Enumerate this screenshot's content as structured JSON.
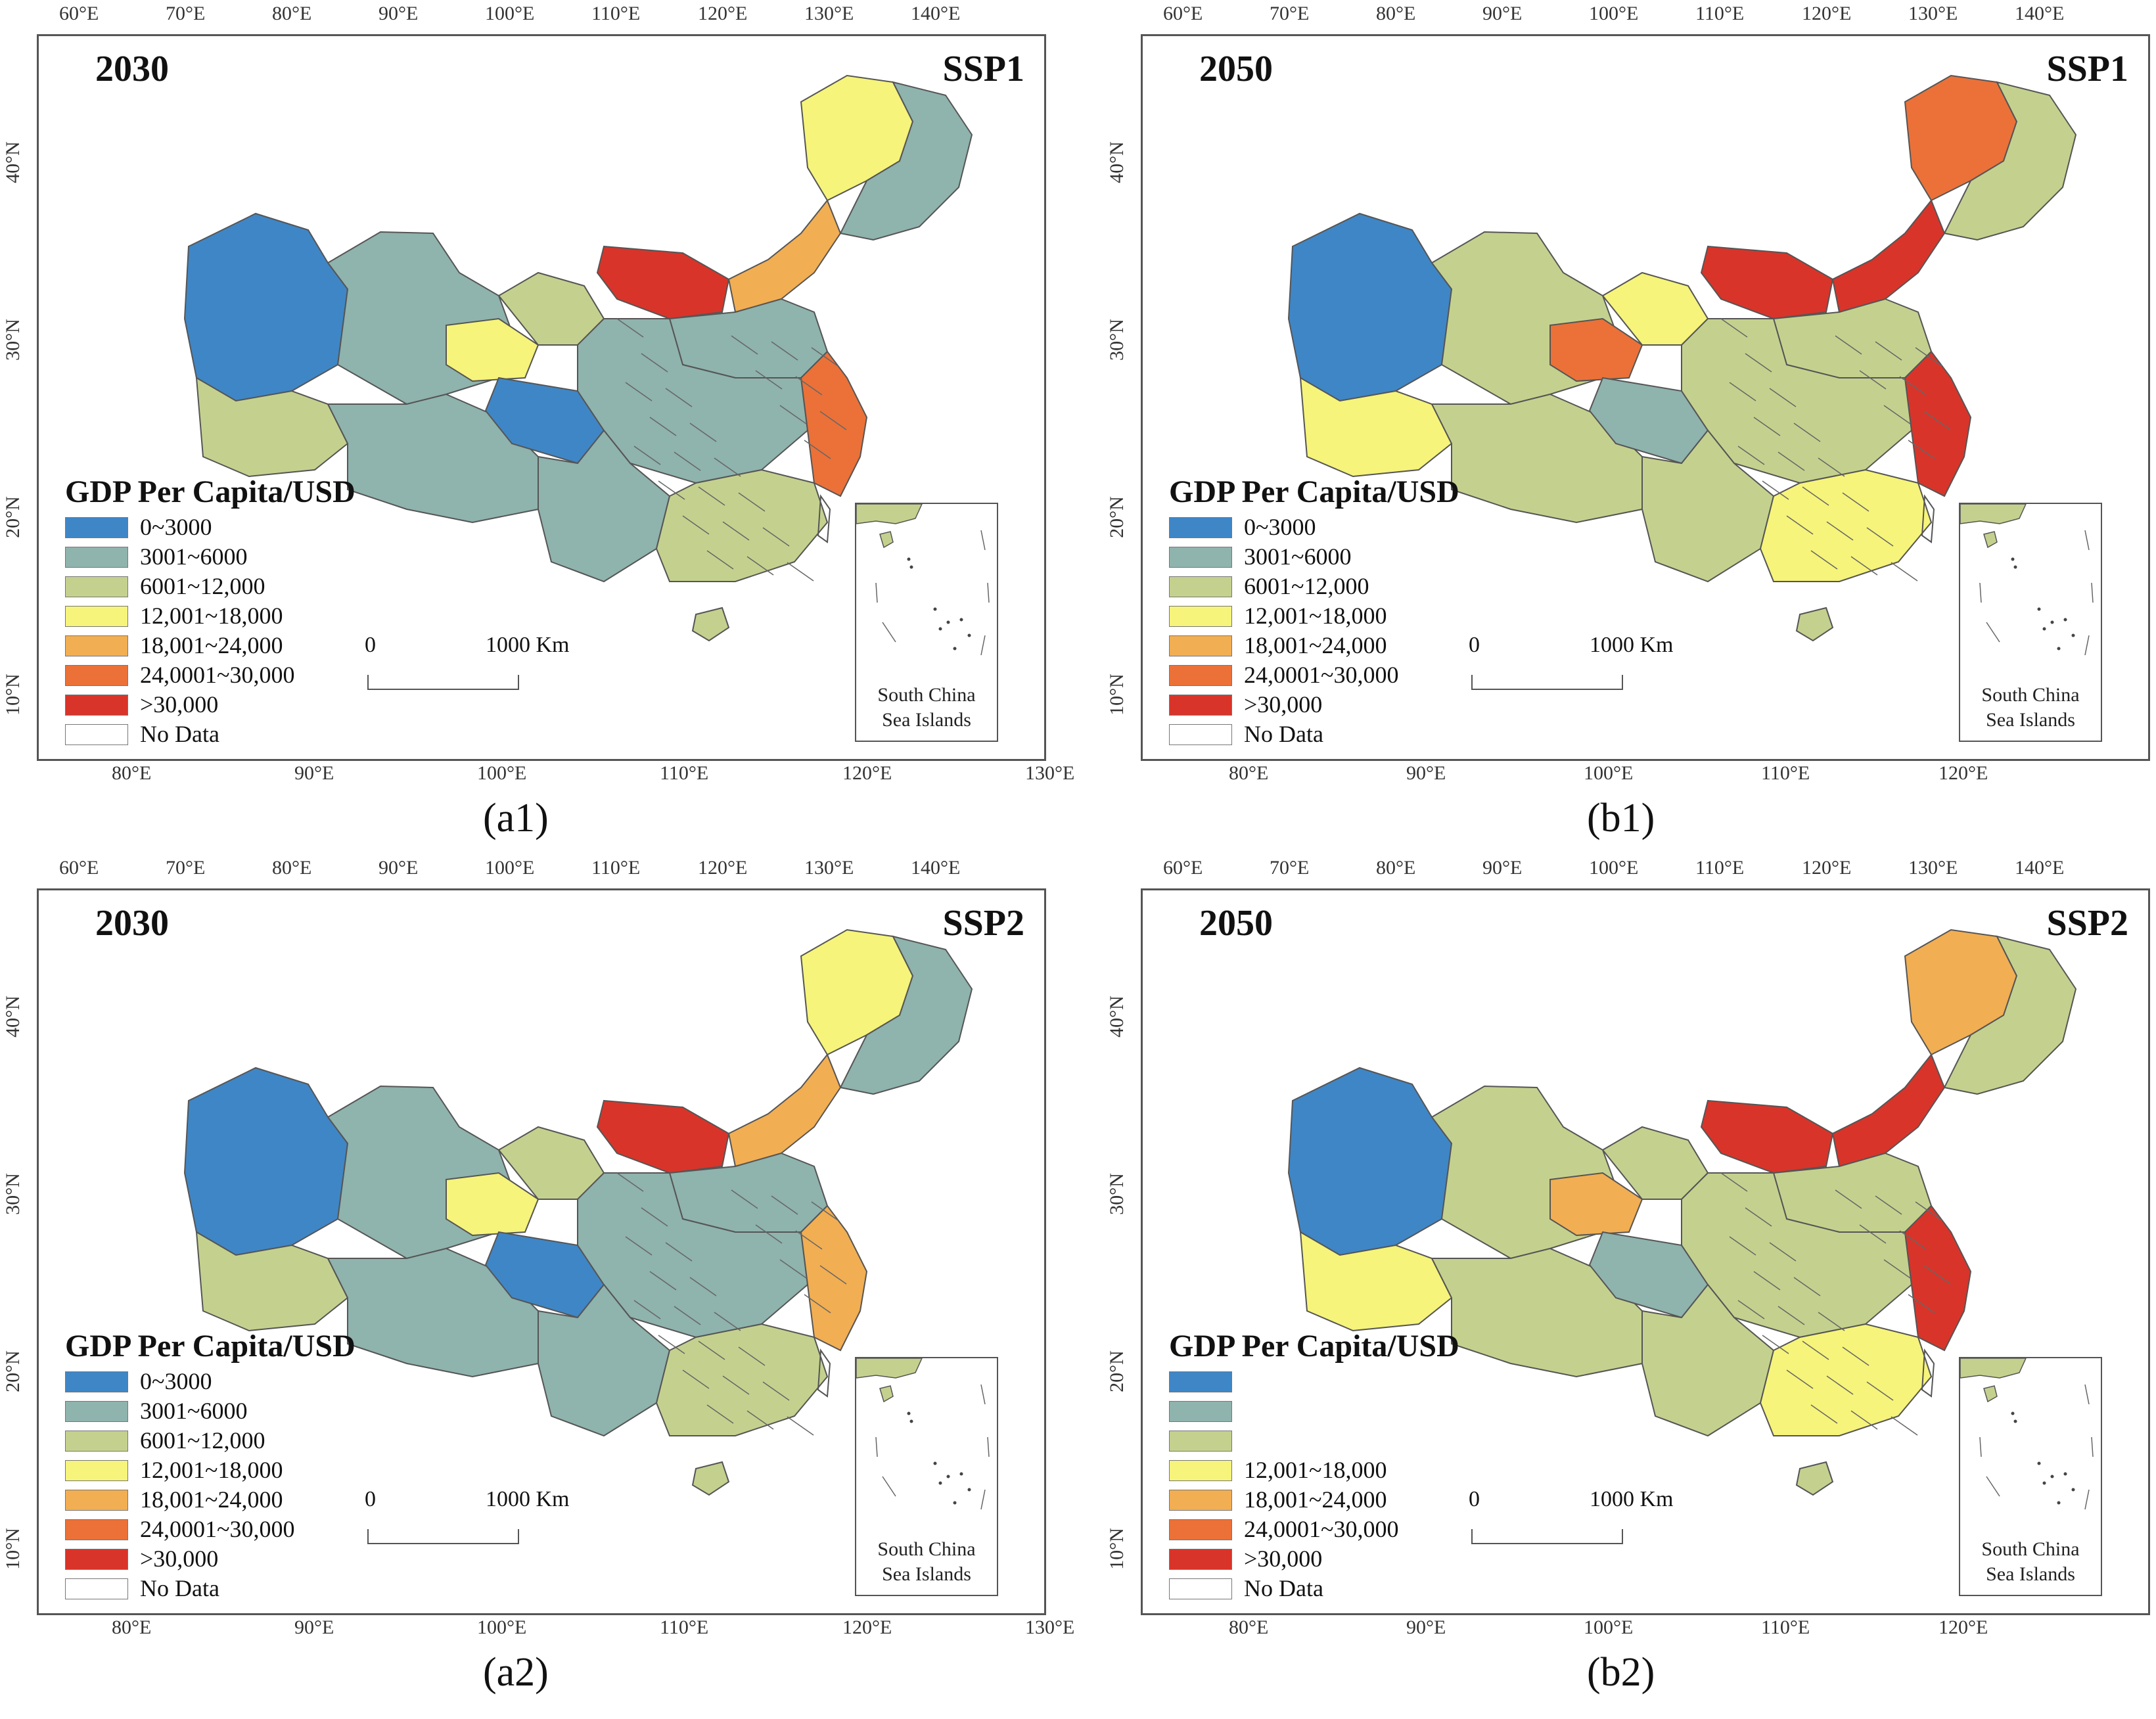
{
  "legend": {
    "title": "GDP Per Capita/USD",
    "classes": [
      {
        "label": "0~3000",
        "color": "#3f86c6"
      },
      {
        "label": "3001~6000",
        "color": "#8fb3ad"
      },
      {
        "label": "6001~12,000",
        "color": "#c4d18e"
      },
      {
        "label": "12,001~18,000",
        "color": "#f6f47a"
      },
      {
        "label": "18,001~24,000",
        "color": "#f2ae52"
      },
      {
        "label": "24,0001~30,000",
        "color": "#eb7138"
      },
      {
        "label": ">30,000",
        "color": "#d9342a"
      },
      {
        "label": "No Data",
        "color": "#ffffff"
      }
    ]
  },
  "axes": {
    "top_lon": [
      "60°E",
      "70°E",
      "80°E",
      "90°E",
      "100°E",
      "110°E",
      "120°E",
      "130°E",
      "140°E"
    ],
    "bottom_lon_a": [
      "80°E",
      "90°E",
      "100°E",
      "110°E",
      "120°E",
      "130°E"
    ],
    "bottom_lon_b": [
      "80°E",
      "90°E",
      "100°E",
      "110°E",
      "120°E"
    ],
    "left_lat": [
      "40°N",
      "30°N",
      "20°N",
      "10°N"
    ],
    "right_lat": [
      "40°N",
      "30°N",
      "20°N",
      "10°N"
    ]
  },
  "scale": {
    "zero": "0",
    "distance": "1000 Km"
  },
  "inset": {
    "line1": "South China",
    "line2": "Sea Islands"
  },
  "panels": [
    {
      "id": "a1",
      "year": "2030",
      "scenario": "SSP1",
      "caption": "(a1)",
      "legend_visible": [
        true,
        true,
        true,
        true,
        true,
        true,
        true,
        true
      ],
      "region_classes": {
        "northwest": 0,
        "xinjiang": 1,
        "tibet_west": 2,
        "tibet": 1,
        "qinghai": 3,
        "qinghai_s": 0,
        "gansu": 2,
        "inner_mongolia_w": 6,
        "inner_mongolia_e": 4,
        "heilongjiang": 3,
        "northeast": 1,
        "north_china": 1,
        "central": 1,
        "southwest": 1,
        "south": 2,
        "east_coast": 5,
        "hainan": 2
      }
    },
    {
      "id": "b1",
      "year": "2050",
      "scenario": "SSP1",
      "caption": "(b1)",
      "legend_visible": [
        true,
        true,
        true,
        true,
        true,
        true,
        true,
        true
      ],
      "region_classes": {
        "northwest": 0,
        "xinjiang": 2,
        "tibet_west": 3,
        "tibet": 2,
        "qinghai": 5,
        "qinghai_s": 1,
        "gansu": 3,
        "inner_mongolia_w": 6,
        "inner_mongolia_e": 6,
        "heilongjiang": 5,
        "northeast": 2,
        "north_china": 2,
        "central": 2,
        "southwest": 2,
        "south": 3,
        "east_coast": 6,
        "hainan": 2
      }
    },
    {
      "id": "a2",
      "year": "2030",
      "scenario": "SSP2",
      "caption": "(a2)",
      "legend_visible": [
        true,
        true,
        true,
        true,
        true,
        true,
        true,
        true
      ],
      "region_classes": {
        "northwest": 0,
        "xinjiang": 1,
        "tibet_west": 2,
        "tibet": 1,
        "qinghai": 3,
        "qinghai_s": 0,
        "gansu": 2,
        "inner_mongolia_w": 6,
        "inner_mongolia_e": 4,
        "heilongjiang": 3,
        "northeast": 1,
        "north_china": 1,
        "central": 1,
        "southwest": 1,
        "south": 2,
        "east_coast": 4,
        "hainan": 2
      }
    },
    {
      "id": "b2",
      "year": "2050",
      "scenario": "SSP2",
      "caption": "(b2)",
      "legend_visible": [
        false,
        false,
        false,
        true,
        true,
        true,
        true,
        true
      ],
      "region_classes": {
        "northwest": 0,
        "xinjiang": 2,
        "tibet_west": 3,
        "tibet": 2,
        "qinghai": 4,
        "qinghai_s": 1,
        "gansu": 2,
        "inner_mongolia_w": 6,
        "inner_mongolia_e": 6,
        "heilongjiang": 4,
        "northeast": 2,
        "north_china": 2,
        "central": 2,
        "southwest": 2,
        "south": 3,
        "east_coast": 6,
        "hainan": 2
      }
    }
  ]
}
